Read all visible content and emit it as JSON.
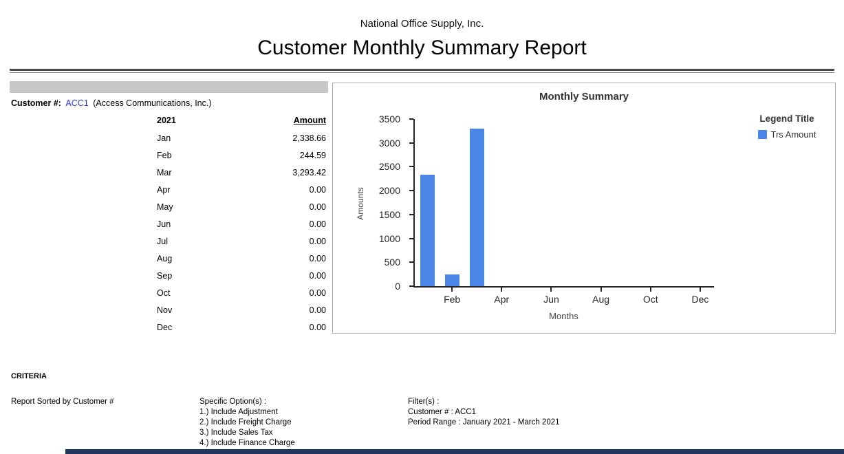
{
  "header": {
    "company": "National Office Supply, Inc.",
    "title": "Customer Monthly Summary Report"
  },
  "customer": {
    "label": "Customer #:",
    "code": "ACC1",
    "name": "(Access Communications, Inc.)"
  },
  "table": {
    "year_header": "2021",
    "amount_header": "Amount",
    "rows": [
      [
        "Jan",
        "2,338.66"
      ],
      [
        "Feb",
        "244.59"
      ],
      [
        "Mar",
        "3,293.42"
      ],
      [
        "Apr",
        "0.00"
      ],
      [
        "May",
        "0.00"
      ],
      [
        "Jun",
        "0.00"
      ],
      [
        "Jul",
        "0.00"
      ],
      [
        "Aug",
        "0.00"
      ],
      [
        "Sep",
        "0.00"
      ],
      [
        "Oct",
        "0.00"
      ],
      [
        "Nov",
        "0.00"
      ],
      [
        "Dec",
        "0.00"
      ]
    ]
  },
  "chart_data": {
    "type": "bar",
    "title": "Monthly Summary",
    "categories": [
      "Jan",
      "Feb",
      "Mar",
      "Apr",
      "May",
      "Jun",
      "Jul",
      "Aug",
      "Sep",
      "Oct",
      "Nov",
      "Dec"
    ],
    "values": [
      2338.66,
      244.59,
      3293.42,
      0,
      0,
      0,
      0,
      0,
      0,
      0,
      0,
      0
    ],
    "xlabel": "Months",
    "ylabel": "Amounts",
    "ylim": [
      0,
      3500
    ],
    "ytick_step": 500,
    "x_tick_labels": [
      "Feb",
      "Apr",
      "Jun",
      "Aug",
      "Oct",
      "Dec"
    ],
    "x_tick_indices": [
      1,
      3,
      5,
      7,
      9,
      11
    ],
    "legend": {
      "title": "Legend Title",
      "series": "Trs Amount",
      "position": "right"
    },
    "bar_color": "#4a86e8",
    "grid": false
  },
  "criteria": {
    "heading": "CRITERIA",
    "sort": "Report Sorted by Customer #",
    "options_title": "Specific Option(s) :",
    "options": [
      "1.) Include Adjustment",
      "2.) Include Freight Charge",
      "3.) Include Sales Tax",
      "4.) Include Finance Charge"
    ],
    "filters_title": "Filter(s) :",
    "filters": [
      "Customer # : ACC1",
      "Period Range : January 2021 - March 2021"
    ]
  }
}
